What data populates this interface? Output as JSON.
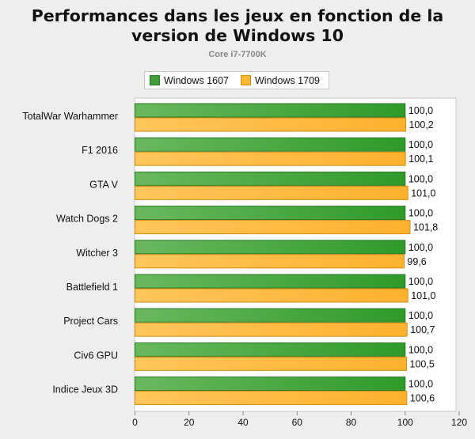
{
  "chart_data": {
    "type": "bar",
    "orientation": "horizontal",
    "title": "Performances dans les jeux en fonction de la version de Windows 10",
    "subtitle": "Core i7-7700K",
    "categories": [
      "TotalWar Warhammer",
      "F1 2016",
      "GTA V",
      "Watch Dogs 2",
      "Witcher 3",
      "Battlefield 1",
      "Project Cars",
      "Civ6 GPU",
      "Indice Jeux 3D"
    ],
    "series": [
      {
        "name": "Windows 1607",
        "color": "#3f9e3a",
        "values": [
          100.0,
          100.0,
          100.0,
          100.0,
          100.0,
          100.0,
          100.0,
          100.0,
          100.0
        ],
        "labels": [
          "100,0",
          "100,0",
          "100,0",
          "100,0",
          "100,0",
          "100,0",
          "100,0",
          "100,0",
          "100,0"
        ]
      },
      {
        "name": "Windows 1709",
        "color": "#ffb733",
        "values": [
          100.2,
          100.1,
          101.0,
          101.8,
          99.6,
          101.0,
          100.7,
          100.5,
          100.6
        ],
        "labels": [
          "100,2",
          "100,1",
          "101,0",
          "101,8",
          "99,6",
          "101,0",
          "100,7",
          "100,5",
          "100,6"
        ]
      }
    ],
    "xlim": [
      0,
      120
    ],
    "xticks": [
      0,
      20,
      40,
      60,
      80,
      100,
      120
    ],
    "grid": false,
    "legend_position": "top"
  }
}
